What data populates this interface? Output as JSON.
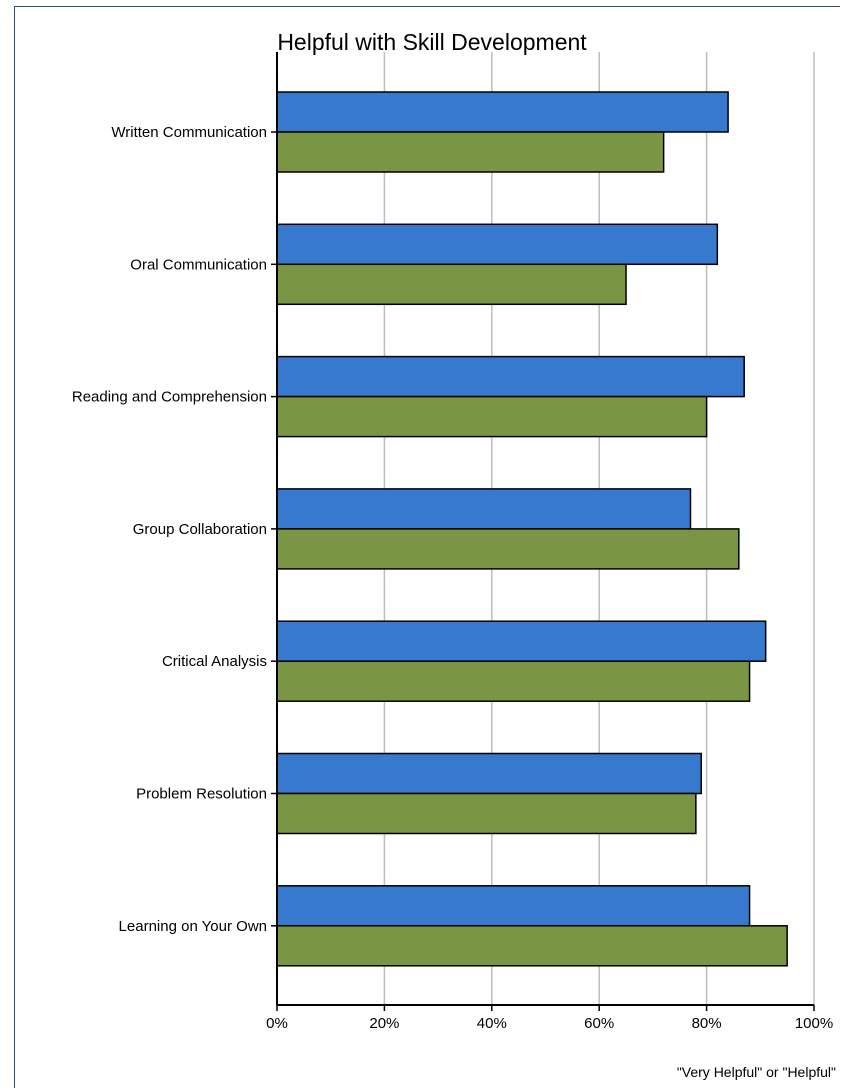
{
  "chart_data": {
    "type": "bar",
    "orientation": "horizontal",
    "title": "Helpful with Skill Development",
    "categories": [
      "Written Communication",
      "Oral Communication",
      "Reading and Comprehension",
      "Group Collaboration",
      "Critical Analysis",
      "Problem Resolution",
      "Learning on Your Own"
    ],
    "series": [
      {
        "color": "#3679cf",
        "values": [
          84,
          82,
          87,
          77,
          91,
          79,
          88
        ]
      },
      {
        "color": "#7a9644",
        "values": [
          72,
          65,
          80,
          86,
          88,
          78,
          95
        ]
      }
    ],
    "xlim": [
      0,
      100
    ],
    "xticks": [
      0,
      20,
      40,
      60,
      80,
      100
    ],
    "xtick_labels": [
      "0%",
      "20%",
      "40%",
      "60%",
      "80%",
      "100%"
    ],
    "grid": true,
    "footnote": "\"Very Helpful\" or \"Helpful\""
  }
}
